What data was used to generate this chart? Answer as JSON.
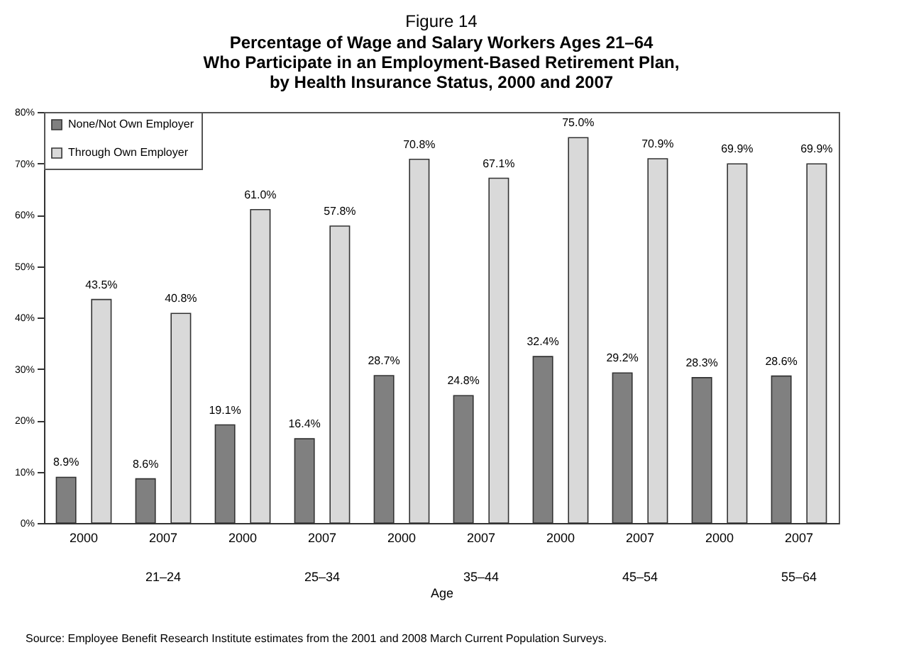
{
  "chart_data": {
    "type": "bar",
    "title": "Figure 14",
    "subtitle": "Percentage of Wage and Salary Workers Ages 21–64\nWho Participate in an Employment-Based Retirement Plan,\nby Health Insurance Status, 2000 and 2007",
    "xlabel": "Age",
    "categories": [
      "2000",
      "2007",
      "2000",
      "2007",
      "2000",
      "2007",
      "2000",
      "2007",
      "2000",
      "2007"
    ],
    "series": [
      {
        "name": "None/Not Own Employer",
        "color": "#808080",
        "values": [
          8.9,
          8.6,
          19.1,
          16.4,
          28.7,
          24.8,
          32.4,
          29.2,
          28.3,
          28.6
        ],
        "value_labels": [
          "8.9%",
          "8.6%",
          "19.1%",
          "16.4%",
          "28.7%",
          "24.8%",
          "32.4%",
          "29.2%",
          "28.3%",
          "28.6%"
        ]
      },
      {
        "name": "Through Own Employer",
        "color": "#d9d9d9",
        "values": [
          43.5,
          40.8,
          61.0,
          57.8,
          70.8,
          67.1,
          75.0,
          70.9,
          69.9,
          69.9
        ],
        "value_labels": [
          "43.5%",
          "40.8%",
          "61.0%",
          "57.8%",
          "70.8%",
          "67.1%",
          "75.0%",
          "70.9%",
          "69.9%",
          "69.9%"
        ]
      }
    ],
    "ylim": [
      0,
      80
    ],
    "yticks": [
      {
        "value": 0,
        "label": "0%"
      },
      {
        "value": 10,
        "label": "10%"
      },
      {
        "value": 20,
        "label": "20%"
      },
      {
        "value": 30,
        "label": "30%"
      },
      {
        "value": 40,
        "label": "40%"
      },
      {
        "value": 50,
        "label": "50%"
      },
      {
        "value": 60,
        "label": "60%"
      },
      {
        "value": 70,
        "label": "70%"
      },
      {
        "value": 80,
        "label": "80%"
      }
    ],
    "legend": "top left",
    "annotations": [
      "21–24",
      "25–34",
      "35–44",
      "45–54",
      "55–64",
      "Source: Employee Benefit Research Institute estimates from the 2001 and 2008 March Current Population Surveys."
    ]
  }
}
